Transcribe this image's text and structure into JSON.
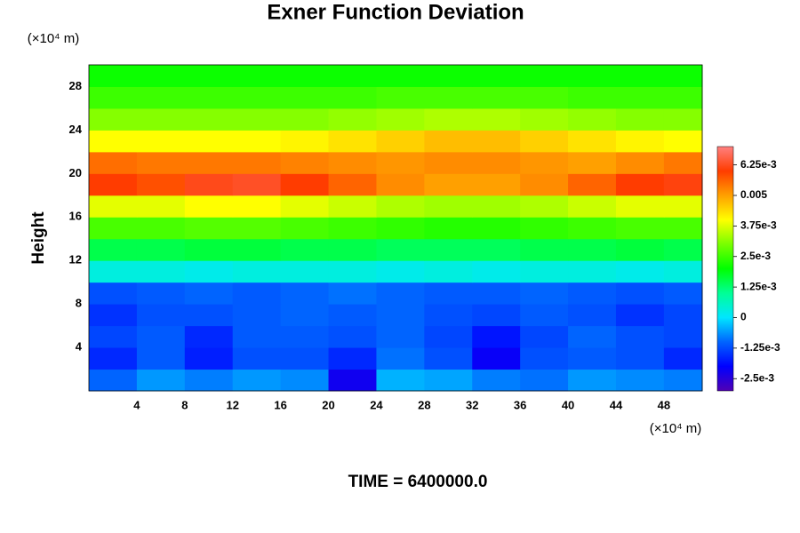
{
  "chart_data": {
    "type": "heatmap",
    "title": "Exner Function Deviation",
    "ylabel": "Height",
    "yunit": "(×10⁴ m)",
    "xunit": "(×10⁴ m)",
    "footer": "TIME = 6400000.0",
    "x": [
      2,
      6,
      10,
      14,
      18,
      22,
      26,
      30,
      34,
      38,
      42,
      46,
      50
    ],
    "y": [
      1,
      3,
      5,
      7,
      9,
      11,
      13,
      15,
      17,
      19,
      21,
      23,
      25,
      27,
      29
    ],
    "z": [
      [
        -0.001,
        -0.0006,
        -0.0008,
        -0.0006,
        -0.0007,
        -0.0022,
        -0.0004,
        -0.0005,
        -0.0008,
        -0.0009,
        -0.0006,
        -0.0007,
        -0.0008
      ],
      [
        -0.0016,
        -0.0011,
        -0.0017,
        -0.0012,
        -0.0012,
        -0.0016,
        -0.0009,
        -0.0012,
        -0.0021,
        -0.0012,
        -0.0011,
        -0.0012,
        -0.0016
      ],
      [
        -0.0013,
        -0.0011,
        -0.0016,
        -0.0011,
        -0.0011,
        -0.0012,
        -0.001,
        -0.0013,
        -0.0018,
        -0.0013,
        -0.001,
        -0.0012,
        -0.0013
      ],
      [
        -0.0015,
        -0.0012,
        -0.0012,
        -0.0011,
        -0.001,
        -0.0011,
        -0.001,
        -0.0012,
        -0.0013,
        -0.0011,
        -0.0012,
        -0.0015,
        -0.0013
      ],
      [
        -0.0012,
        -0.0011,
        -0.001,
        -0.0011,
        -0.001,
        -0.0009,
        -0.001,
        -0.0011,
        -0.0011,
        -0.001,
        -0.0011,
        -0.0012,
        -0.0011
      ],
      [
        0.0003,
        0.0003,
        0.0002,
        0.0003,
        0.0003,
        0.0003,
        0.0002,
        0.0003,
        0.0002,
        0.0003,
        0.0003,
        0.0002,
        0.0003
      ],
      [
        0.0015,
        0.0015,
        0.0016,
        0.0016,
        0.0015,
        0.0015,
        0.0014,
        0.0014,
        0.0014,
        0.0015,
        0.0015,
        0.0016,
        0.0015
      ],
      [
        0.0026,
        0.0026,
        0.0027,
        0.0027,
        0.0026,
        0.0025,
        0.0024,
        0.0023,
        0.0023,
        0.0024,
        0.0025,
        0.0026,
        0.0026
      ],
      [
        0.0038,
        0.0038,
        0.004,
        0.004,
        0.0038,
        0.0036,
        0.0034,
        0.0033,
        0.0033,
        0.0034,
        0.0036,
        0.0038,
        0.0038
      ],
      [
        0.006,
        0.0058,
        0.0062,
        0.0063,
        0.006,
        0.0056,
        0.0052,
        0.005,
        0.005,
        0.0052,
        0.0056,
        0.006,
        0.0061
      ],
      [
        0.0055,
        0.0054,
        0.0054,
        0.0054,
        0.0053,
        0.0052,
        0.0051,
        0.0052,
        0.0052,
        0.0051,
        0.005,
        0.0052,
        0.0054
      ],
      [
        0.004,
        0.004,
        0.004,
        0.004,
        0.0041,
        0.0043,
        0.0045,
        0.0047,
        0.0047,
        0.0045,
        0.0043,
        0.0041,
        0.004
      ],
      [
        0.0031,
        0.0031,
        0.0031,
        0.0031,
        0.0031,
        0.0032,
        0.0033,
        0.0034,
        0.0034,
        0.0033,
        0.0032,
        0.0031,
        0.0031
      ],
      [
        0.0025,
        0.0025,
        0.0025,
        0.0025,
        0.0025,
        0.0025,
        0.0026,
        0.0026,
        0.0026,
        0.0026,
        0.0025,
        0.0025,
        0.0025
      ],
      [
        0.0021,
        0.0021,
        0.0021,
        0.0021,
        0.0021,
        0.0021,
        0.0021,
        0.0021,
        0.0021,
        0.0021,
        0.0021,
        0.0021,
        0.0021
      ]
    ],
    "xlim": [
      0,
      51.2
    ],
    "ylim": [
      0,
      30
    ],
    "xticks": [
      4,
      8,
      12,
      16,
      20,
      24,
      28,
      32,
      36,
      40,
      44,
      48
    ],
    "yticks": [
      4,
      8,
      12,
      16,
      20,
      24,
      28
    ],
    "zlim": [
      -0.003,
      0.007
    ],
    "zticks": [
      {
        "value": -0.0025,
        "label": "-2.5e-3"
      },
      {
        "value": -0.00125,
        "label": "-1.25e-3"
      },
      0,
      {
        "value": 0.00125,
        "label": "1.25e-3"
      },
      {
        "value": 0.0025,
        "label": "2.5e-3"
      },
      {
        "value": 0.00375,
        "label": "3.75e-3"
      },
      0.005,
      {
        "value": 0.00625,
        "label": "6.25e-3"
      }
    ],
    "colorscale": [
      "#5000b4",
      "#0000ff",
      "#0064ff",
      "#00e6ff",
      "#00ff96",
      "#00ff00",
      "#78ff00",
      "#ffff00",
      "#ffa000",
      "#ff3c00",
      "#ff8080"
    ]
  }
}
